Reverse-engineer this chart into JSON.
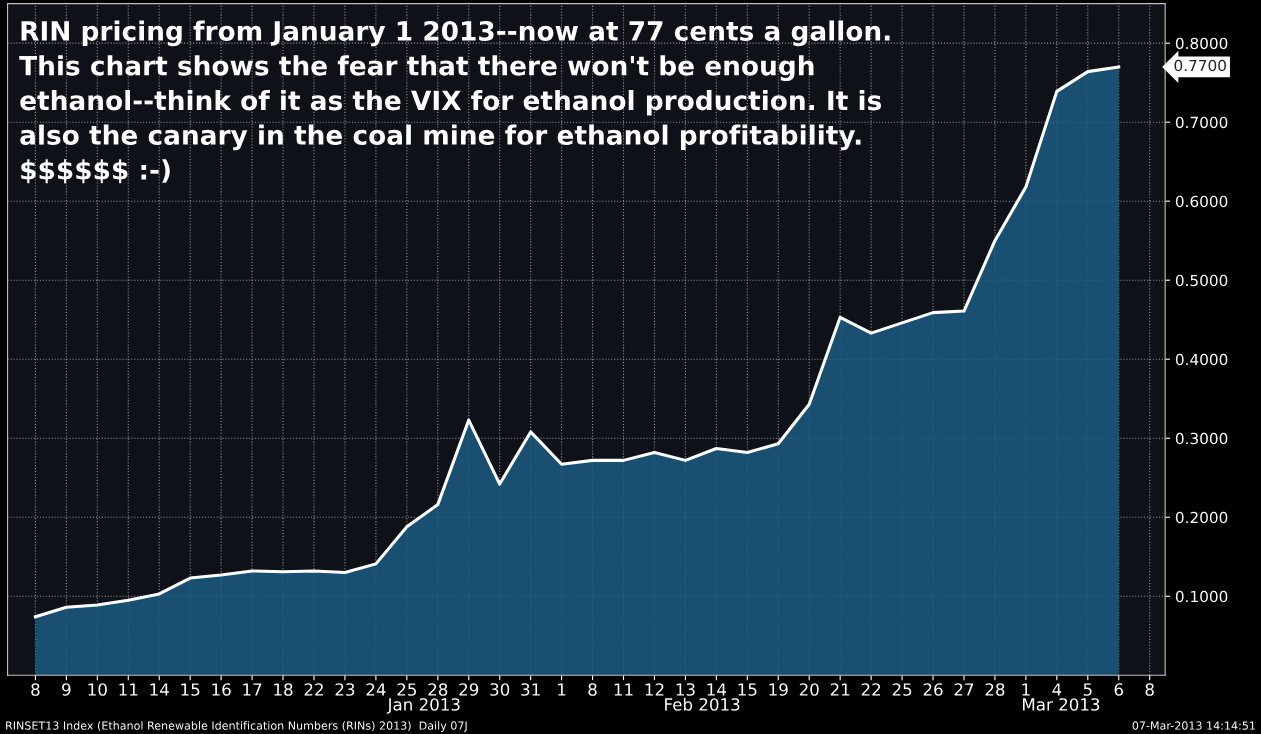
{
  "chart_data": {
    "type": "area",
    "title": "RIN pricing from January 1 2013--now at 77 cents a gallon.\nThis chart shows the fear that there won't be enough\nethanol--think of it as the VIX for ethanol production. It is\nalso the canary in the coal mine for ethanol profitability.\n$$$$$$ :-)",
    "categories": [
      "8",
      "9",
      "10",
      "11",
      "14",
      "15",
      "16",
      "17",
      "18",
      "22",
      "23",
      "24",
      "25",
      "28",
      "29",
      "30",
      "31",
      "1",
      "8",
      "11",
      "12",
      "13",
      "14",
      "15",
      "19",
      "20",
      "21",
      "22",
      "25",
      "26",
      "27",
      "28",
      "1",
      "4",
      "5",
      "6",
      "8"
    ],
    "series": [
      {
        "color": "#1b5a80",
        "values": [
          0.074,
          0.086,
          0.089,
          0.095,
          0.103,
          0.123,
          0.127,
          0.132,
          0.131,
          0.132,
          0.13,
          0.141,
          0.188,
          0.216,
          0.323,
          0.242,
          0.308,
          0.267,
          0.272,
          0.272,
          0.282,
          0.272,
          0.287,
          0.282,
          0.293,
          0.343,
          0.453,
          0.433,
          0.446,
          0.459,
          0.461,
          0.55,
          0.618,
          0.739,
          0.764,
          0.77,
          null
        ]
      }
    ],
    "ylim": [
      0,
      0.85
    ],
    "yticks": [
      {
        "value": 0.1,
        "label": "0.1000"
      },
      {
        "value": 0.2,
        "label": "0.2000"
      },
      {
        "value": 0.3,
        "label": "0.3000"
      },
      {
        "value": 0.4,
        "label": "0.4000"
      },
      {
        "value": 0.5,
        "label": "0.5000"
      },
      {
        "value": 0.6,
        "label": "0.6000"
      },
      {
        "value": 0.7,
        "label": "0.7000"
      },
      {
        "value": 0.8,
        "label": "0.8000"
      }
    ],
    "grid": true,
    "annotations": [
      "Jan 2013",
      "Feb 2013",
      "Mar 2013",
      "RINSET13 Index (Ethanol Renewable Identification Numbers (RINs) 2013)  Daily 07J",
      "07-Mar-2013 14:14:51",
      "0.7700"
    ]
  }
}
